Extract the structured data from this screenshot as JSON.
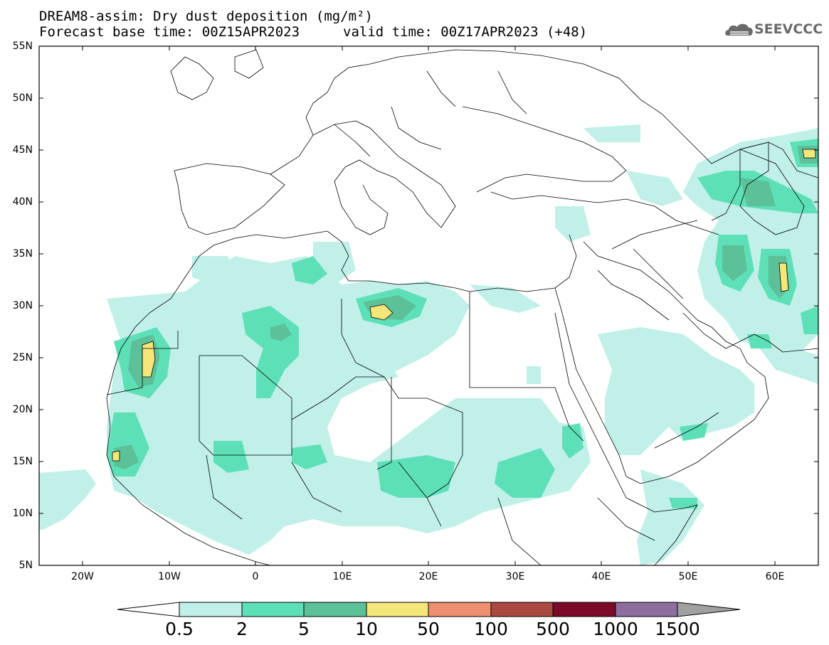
{
  "header": {
    "title_line1": "DREAM8-assim: Dry dust deposition (mg/m²)",
    "title_line2": "Forecast base time: 00Z15APR2023",
    "valid_time": "valid time: 00Z17APR2023 (+48)",
    "logo_text": "SEEVCCC",
    "logo_icon": "cloud-logo-icon"
  },
  "map": {
    "lat_labels": [
      "55N",
      "50N",
      "45N",
      "40N",
      "35N",
      "30N",
      "25N",
      "20N",
      "15N",
      "10N",
      "5N"
    ],
    "lon_labels": [
      "20W",
      "10W",
      "0",
      "10E",
      "20E",
      "30E",
      "40E",
      "50E",
      "60E"
    ]
  },
  "colorbar": {
    "labels": [
      "0.5",
      "2",
      "5",
      "10",
      "50",
      "100",
      "500",
      "1000",
      "1500"
    ],
    "colors": [
      "#ffffff",
      "#c0f0e8",
      "#5de0b8",
      "#5cc098",
      "#f5e67a",
      "#ee9070",
      "#aa4a40",
      "#7a0a28",
      "#8e6e9e",
      "#a0a0a0"
    ]
  }
}
